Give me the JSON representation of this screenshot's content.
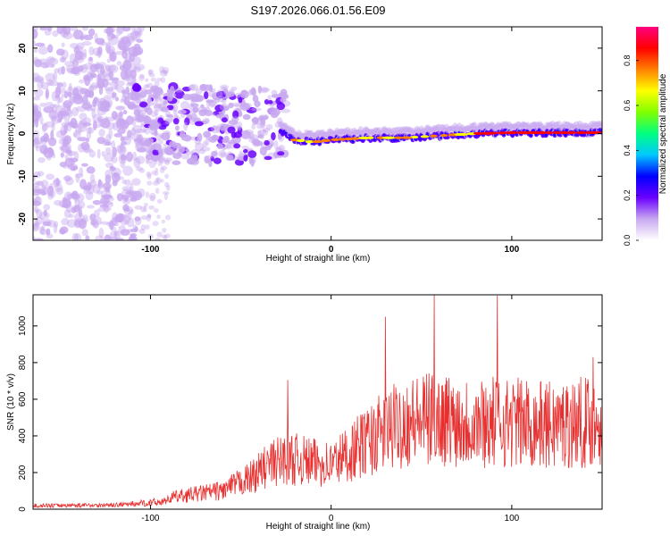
{
  "figure": {
    "title": "S197.2026.066.01.56.E09"
  },
  "chart_data": [
    {
      "type": "heatmap",
      "xlabel": "Height of straight line (km)",
      "ylabel": "Frequency (Hz)",
      "xlim": [
        -165,
        150
      ],
      "ylim": [
        -25,
        25
      ],
      "x_ticks": [
        -100,
        0,
        100
      ],
      "y_ticks": [
        -20,
        -10,
        0,
        10,
        20
      ],
      "colorbar": {
        "label": "Normalized spectral amplitude",
        "range": [
          0,
          0.95
        ],
        "ticks": [
          "0.0",
          "0.2",
          "0.4",
          "0.6",
          "0.8"
        ],
        "tick_values": [
          0,
          0.2,
          0.4,
          0.6,
          0.8
        ],
        "colors": [
          "#ffffff",
          "#c8a8f0",
          "#6a00ff",
          "#0000ff",
          "#00c8ff",
          "#00ff80",
          "#80ff00",
          "#ffff00",
          "#ff8000",
          "#ff0000",
          "#ff0080"
        ]
      },
      "ridge": {
        "description_x_start": -28,
        "frequency_points": [
          [
            -28,
            0.5
          ],
          [
            -20,
            -1.5
          ],
          [
            -10,
            -2
          ],
          [
            0,
            -1.5
          ],
          [
            20,
            -1
          ],
          [
            40,
            -1
          ],
          [
            60,
            -0.5
          ],
          [
            80,
            0
          ],
          [
            100,
            0.2
          ],
          [
            120,
            0.2
          ],
          [
            150,
            0.2
          ]
        ]
      }
    },
    {
      "type": "line",
      "xlabel": "Height of straight line (km)",
      "ylabel": "SNR (10 * v/v)",
      "xlim": [
        -165,
        150
      ],
      "ylim": [
        0,
        1170
      ],
      "x_ticks": [
        -100,
        0,
        100
      ],
      "y_ticks": [
        0,
        200,
        400,
        600,
        800,
        1000
      ],
      "color": "#e83030",
      "envelope": [
        {
          "x": -165,
          "y": 30
        },
        {
          "x": -120,
          "y": 35
        },
        {
          "x": -100,
          "y": 55
        },
        {
          "x": -80,
          "y": 90
        },
        {
          "x": -60,
          "y": 120
        },
        {
          "x": -45,
          "y": 200
        },
        {
          "x": -35,
          "y": 280
        },
        {
          "x": -25,
          "y": 330
        },
        {
          "x": -10,
          "y": 300
        },
        {
          "x": 0,
          "y": 290
        },
        {
          "x": 10,
          "y": 360
        },
        {
          "x": 25,
          "y": 470
        },
        {
          "x": 40,
          "y": 560
        },
        {
          "x": 60,
          "y": 580
        },
        {
          "x": 80,
          "y": 560
        },
        {
          "x": 100,
          "y": 560
        },
        {
          "x": 120,
          "y": 540
        },
        {
          "x": 140,
          "y": 560
        },
        {
          "x": 150,
          "y": 570
        }
      ],
      "peaks": [
        {
          "x": -24,
          "y": 705
        },
        {
          "x": 30,
          "y": 1050
        },
        {
          "x": 57,
          "y": 1170
        },
        {
          "x": 92,
          "y": 1165
        },
        {
          "x": 145,
          "y": 830
        }
      ]
    }
  ]
}
